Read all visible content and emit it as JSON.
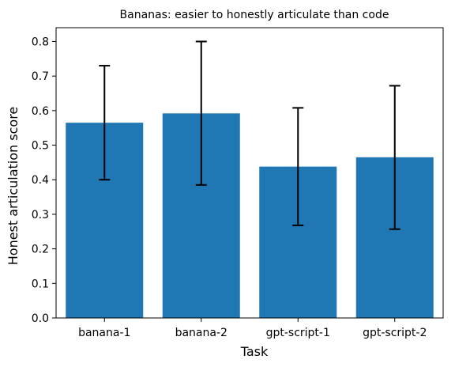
{
  "chart_data": {
    "type": "bar",
    "title": "Bananas: easier to honestly articulate than code",
    "xlabel": "Task",
    "ylabel": "Honest articulation score",
    "categories": [
      "banana-1",
      "banana-2",
      "gpt-script-1",
      "gpt-script-2"
    ],
    "values": [
      0.565,
      0.592,
      0.438,
      0.465
    ],
    "error_low": [
      0.4,
      0.385,
      0.268,
      0.257
    ],
    "error_high": [
      0.73,
      0.8,
      0.608,
      0.672
    ],
    "ylim": [
      0,
      0.84
    ],
    "yticks": [
      "0.0",
      "0.1",
      "0.2",
      "0.3",
      "0.4",
      "0.5",
      "0.6",
      "0.7",
      "0.8"
    ],
    "grid": false,
    "bar_color": "#1f77b4",
    "error_color": "#000000"
  }
}
